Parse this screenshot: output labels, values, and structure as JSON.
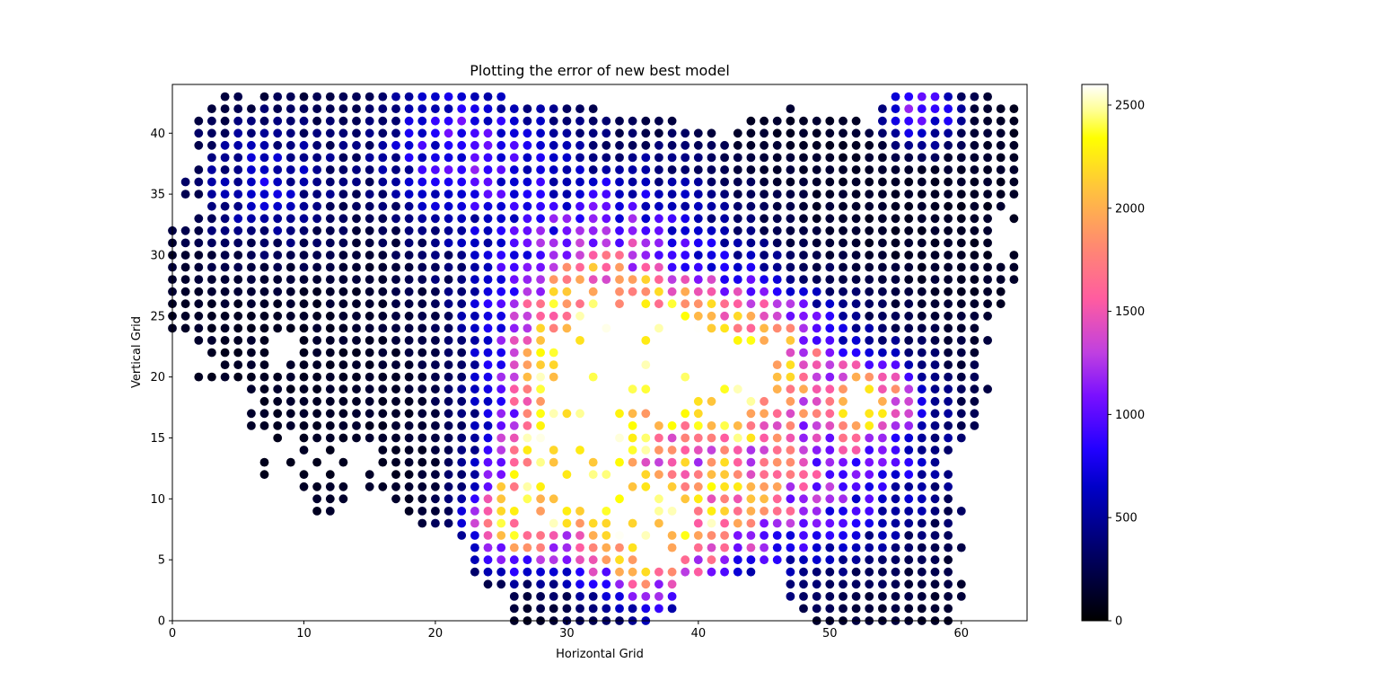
{
  "chart_data": {
    "type": "scatter",
    "title": "Plotting the error of new best model",
    "xlabel": "Horizontal Grid",
    "ylabel": "Vertical Grid",
    "xlim": [
      0,
      65
    ],
    "ylim": [
      0,
      44
    ],
    "x_ticks": [
      0,
      10,
      20,
      30,
      40,
      50,
      60
    ],
    "y_ticks": [
      0,
      5,
      10,
      15,
      20,
      25,
      30,
      35,
      40
    ],
    "grid": false,
    "legend": "none",
    "colormap": "gnuplot2",
    "colorbar": {
      "range": [
        0,
        2600
      ],
      "ticks": [
        0,
        500,
        1000,
        1500,
        2000,
        2500
      ]
    },
    "grid_spacing": 1,
    "region_rows": [
      {
        "y": 43,
        "segments": [
          [
            4,
            5
          ],
          [
            7,
            25
          ],
          [
            55,
            62
          ]
        ]
      },
      {
        "y": 42,
        "segments": [
          [
            3,
            32
          ],
          [
            47,
            47
          ],
          [
            54,
            64
          ]
        ]
      },
      {
        "y": 41,
        "segments": [
          [
            2,
            38
          ],
          [
            44,
            52
          ],
          [
            54,
            64
          ]
        ]
      },
      {
        "y": 40,
        "segments": [
          [
            2,
            41
          ],
          [
            43,
            64
          ]
        ]
      },
      {
        "y": 39,
        "segments": [
          [
            2,
            64
          ]
        ]
      },
      {
        "y": 38,
        "segments": [
          [
            3,
            64
          ]
        ]
      },
      {
        "y": 37,
        "segments": [
          [
            2,
            64
          ]
        ]
      },
      {
        "y": 36,
        "segments": [
          [
            1,
            64
          ]
        ]
      },
      {
        "y": 35,
        "segments": [
          [
            1,
            64
          ]
        ]
      },
      {
        "y": 34,
        "segments": [
          [
            3,
            63
          ]
        ]
      },
      {
        "y": 33,
        "segments": [
          [
            2,
            62
          ],
          [
            64,
            64
          ]
        ]
      },
      {
        "y": 32,
        "segments": [
          [
            0,
            62
          ]
        ]
      },
      {
        "y": 31,
        "segments": [
          [
            0,
            62
          ]
        ]
      },
      {
        "y": 30,
        "segments": [
          [
            0,
            62
          ],
          [
            64,
            64
          ]
        ]
      },
      {
        "y": 29,
        "segments": [
          [
            0,
            64
          ]
        ]
      },
      {
        "y": 28,
        "segments": [
          [
            0,
            64
          ]
        ]
      },
      {
        "y": 27,
        "segments": [
          [
            0,
            63
          ]
        ]
      },
      {
        "y": 26,
        "segments": [
          [
            0,
            63
          ]
        ]
      },
      {
        "y": 25,
        "segments": [
          [
            0,
            62
          ]
        ]
      },
      {
        "y": 24,
        "segments": [
          [
            0,
            61
          ]
        ]
      },
      {
        "y": 23,
        "segments": [
          [
            2,
            7
          ],
          [
            10,
            62
          ]
        ]
      },
      {
        "y": 22,
        "segments": [
          [
            3,
            7
          ],
          [
            10,
            61
          ]
        ]
      },
      {
        "y": 21,
        "segments": [
          [
            4,
            7
          ],
          [
            9,
            61
          ]
        ]
      },
      {
        "y": 20,
        "segments": [
          [
            2,
            61
          ]
        ]
      },
      {
        "y": 19,
        "segments": [
          [
            6,
            62
          ]
        ]
      },
      {
        "y": 18,
        "segments": [
          [
            7,
            61
          ]
        ]
      },
      {
        "y": 17,
        "segments": [
          [
            6,
            61
          ]
        ]
      },
      {
        "y": 16,
        "segments": [
          [
            6,
            61
          ]
        ]
      },
      {
        "y": 15,
        "segments": [
          [
            8,
            8
          ],
          [
            10,
            13
          ],
          [
            14,
            60
          ]
        ]
      },
      {
        "y": 14,
        "segments": [
          [
            10,
            10
          ],
          [
            12,
            12
          ],
          [
            16,
            59
          ]
        ]
      },
      {
        "y": 13,
        "segments": [
          [
            7,
            7
          ],
          [
            9,
            9
          ],
          [
            11,
            11
          ],
          [
            13,
            13
          ],
          [
            16,
            58
          ]
        ]
      },
      {
        "y": 12,
        "segments": [
          [
            7,
            7
          ],
          [
            10,
            10
          ],
          [
            12,
            12
          ],
          [
            15,
            15
          ],
          [
            17,
            59
          ]
        ]
      },
      {
        "y": 11,
        "segments": [
          [
            10,
            13
          ],
          [
            15,
            59
          ]
        ]
      },
      {
        "y": 10,
        "segments": [
          [
            11,
            13
          ],
          [
            17,
            59
          ]
        ]
      },
      {
        "y": 9,
        "segments": [
          [
            11,
            12
          ],
          [
            18,
            60
          ]
        ]
      },
      {
        "y": 8,
        "segments": [
          [
            19,
            59
          ]
        ]
      },
      {
        "y": 7,
        "segments": [
          [
            22,
            59
          ]
        ]
      },
      {
        "y": 6,
        "segments": [
          [
            23,
            60
          ]
        ]
      },
      {
        "y": 5,
        "segments": [
          [
            23,
            59
          ]
        ]
      },
      {
        "y": 4,
        "segments": [
          [
            23,
            44
          ],
          [
            47,
            59
          ]
        ]
      },
      {
        "y": 3,
        "segments": [
          [
            24,
            38
          ],
          [
            47,
            60
          ]
        ]
      },
      {
        "y": 2,
        "segments": [
          [
            26,
            38
          ],
          [
            47,
            60
          ]
        ]
      },
      {
        "y": 1,
        "segments": [
          [
            26,
            38
          ],
          [
            48,
            59
          ]
        ]
      },
      {
        "y": 0,
        "segments": [
          [
            26,
            36
          ],
          [
            49,
            59
          ]
        ]
      }
    ],
    "error_hotspots": [
      {
        "x": 33,
        "y": 21,
        "peak": 2550,
        "spread": 4.5
      },
      {
        "x": 36,
        "y": 7,
        "peak": 2450,
        "spread": 3.5
      },
      {
        "x": 30,
        "y": 13,
        "peak": 2300,
        "spread": 3.5
      },
      {
        "x": 41,
        "y": 20,
        "peak": 1850,
        "spread": 3.5
      },
      {
        "x": 26,
        "y": 8,
        "peak": 1700,
        "spread": 2.5
      },
      {
        "x": 53,
        "y": 18,
        "peak": 1750,
        "spread": 2.0
      },
      {
        "x": 45,
        "y": 22,
        "peak": 1300,
        "spread": 3.5
      },
      {
        "x": 57,
        "y": 42,
        "peak": 950,
        "spread": 2.0
      },
      {
        "x": 22,
        "y": 39,
        "peak": 750,
        "spread": 4.5
      },
      {
        "x": 33,
        "y": 28,
        "peak": 1050,
        "spread": 6.5
      },
      {
        "x": 50,
        "y": 14,
        "peak": 900,
        "spread": 6.0
      },
      {
        "x": 43,
        "y": 10,
        "peak": 1000,
        "spread": 4.0
      },
      {
        "x": 7,
        "y": 36,
        "peak": 500,
        "spread": 4.0
      }
    ],
    "base_error": 120
  }
}
